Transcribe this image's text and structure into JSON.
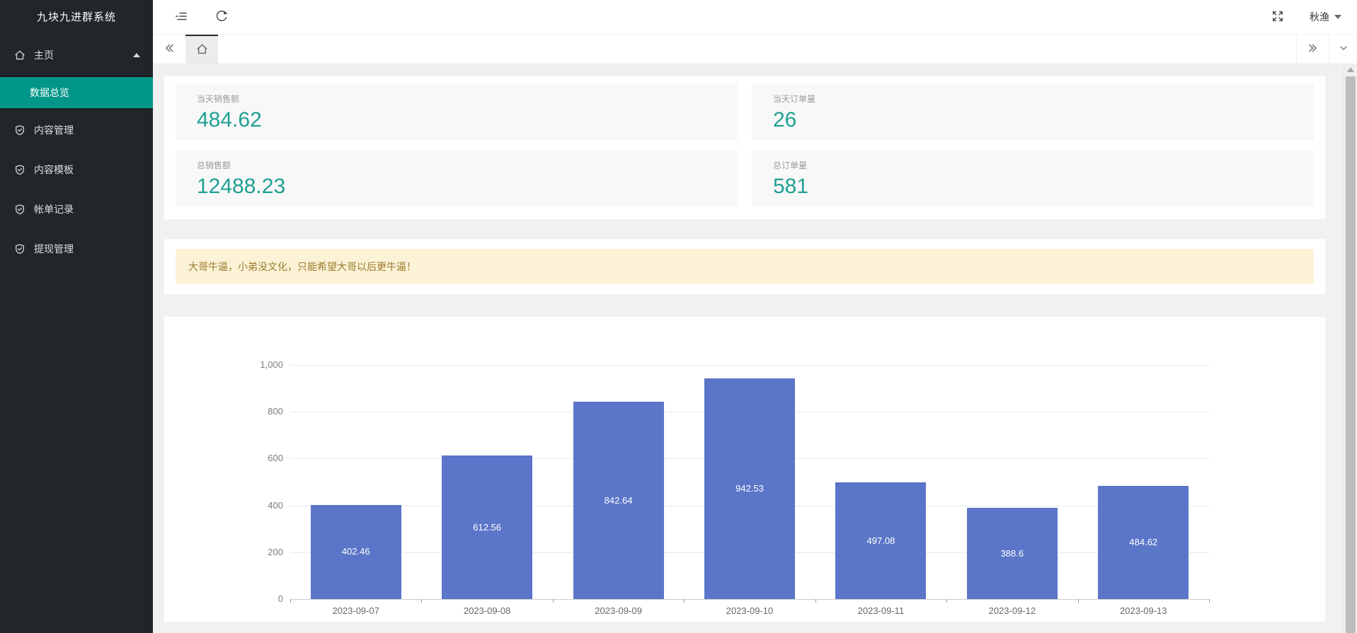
{
  "app": {
    "title": "九块九进群系统"
  },
  "sidebar": {
    "title": "九块九进群系统",
    "home": {
      "label": "主页",
      "expanded": true
    },
    "home_children": [
      {
        "label": "数据总览",
        "active": true
      }
    ],
    "items": [
      {
        "label": "内容管理"
      },
      {
        "label": "内容模板"
      },
      {
        "label": "帐单记录"
      },
      {
        "label": "提现管理"
      }
    ],
    "active_bg": "#009688"
  },
  "header": {
    "username": "秋渔"
  },
  "icons": {
    "topbar": [
      "menu-fold-icon",
      "refresh-icon",
      "fullscreen-icon",
      "caret-down-icon"
    ],
    "tabbar": [
      "double-chevron-left-icon",
      "home-icon",
      "double-chevron-right-icon",
      "chevron-down-icon"
    ],
    "sidebar": [
      "home-icon",
      "caret-up-icon",
      "shield-check-icon"
    ]
  },
  "stats": [
    {
      "label": "当天销售额",
      "value": "484.62"
    },
    {
      "label": "当天订单量",
      "value": "26"
    },
    {
      "label": "总销售额",
      "value": "12488.23"
    },
    {
      "label": "总订单量",
      "value": "581"
    }
  ],
  "stat_value_color": "#1fa094",
  "notice": {
    "text": "大哥牛逼，小弟没文化，只能希望大哥以后更牛逼！",
    "bg": "#fcf2d6",
    "text_color": "#9a7c2e"
  },
  "chart_data": {
    "type": "bar",
    "title": "",
    "xlabel": "",
    "ylabel": "",
    "categories": [
      "2023-09-07",
      "2023-09-08",
      "2023-09-09",
      "2023-09-10",
      "2023-09-11",
      "2023-09-12",
      "2023-09-13"
    ],
    "values": [
      402.46,
      612.56,
      842.64,
      942.53,
      497.08,
      388.6,
      484.62
    ],
    "ylim": [
      0,
      1000
    ],
    "ytick_interval": 200,
    "ytick_labels": [
      "0",
      "200",
      "400",
      "600",
      "800",
      "1,000"
    ],
    "grid": true,
    "legend": false,
    "bar_color": "#5b76c8",
    "value_label_color": "#ffffff"
  }
}
